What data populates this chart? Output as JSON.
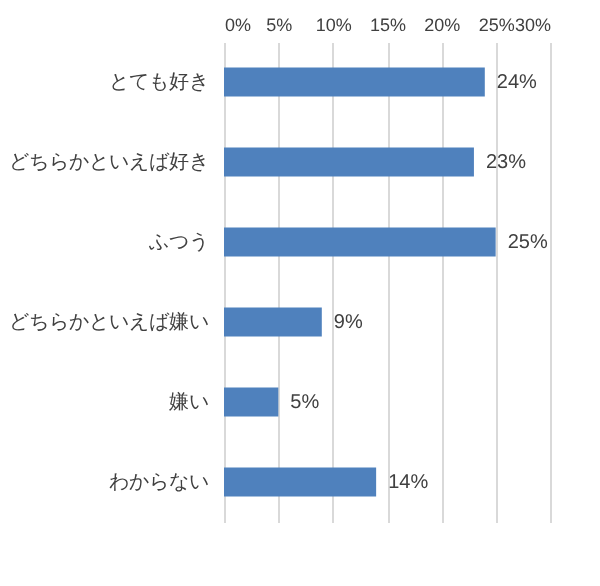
{
  "chart_data": {
    "type": "bar",
    "orientation": "horizontal",
    "categories": [
      "とても好き",
      "どちらかといえば好き",
      "ふつう",
      "どちらかといえば嫌い",
      "嫌い",
      "わからない"
    ],
    "values": [
      24,
      23,
      25,
      9,
      5,
      14
    ],
    "value_labels": [
      "24%",
      "23%",
      "25%",
      "9%",
      "5%",
      "14%"
    ],
    "color": "#4f81bd",
    "xlim": [
      0,
      30
    ],
    "xticks": [
      {
        "value": 0,
        "label": "0%"
      },
      {
        "value": 5,
        "label": "5%"
      },
      {
        "value": 10,
        "label": "10%"
      },
      {
        "value": 15,
        "label": "15%"
      },
      {
        "value": 20,
        "label": "20%"
      },
      {
        "value": 25,
        "label": "25%"
      },
      {
        "value": 30,
        "label": "30%"
      }
    ],
    "grid": "x"
  }
}
